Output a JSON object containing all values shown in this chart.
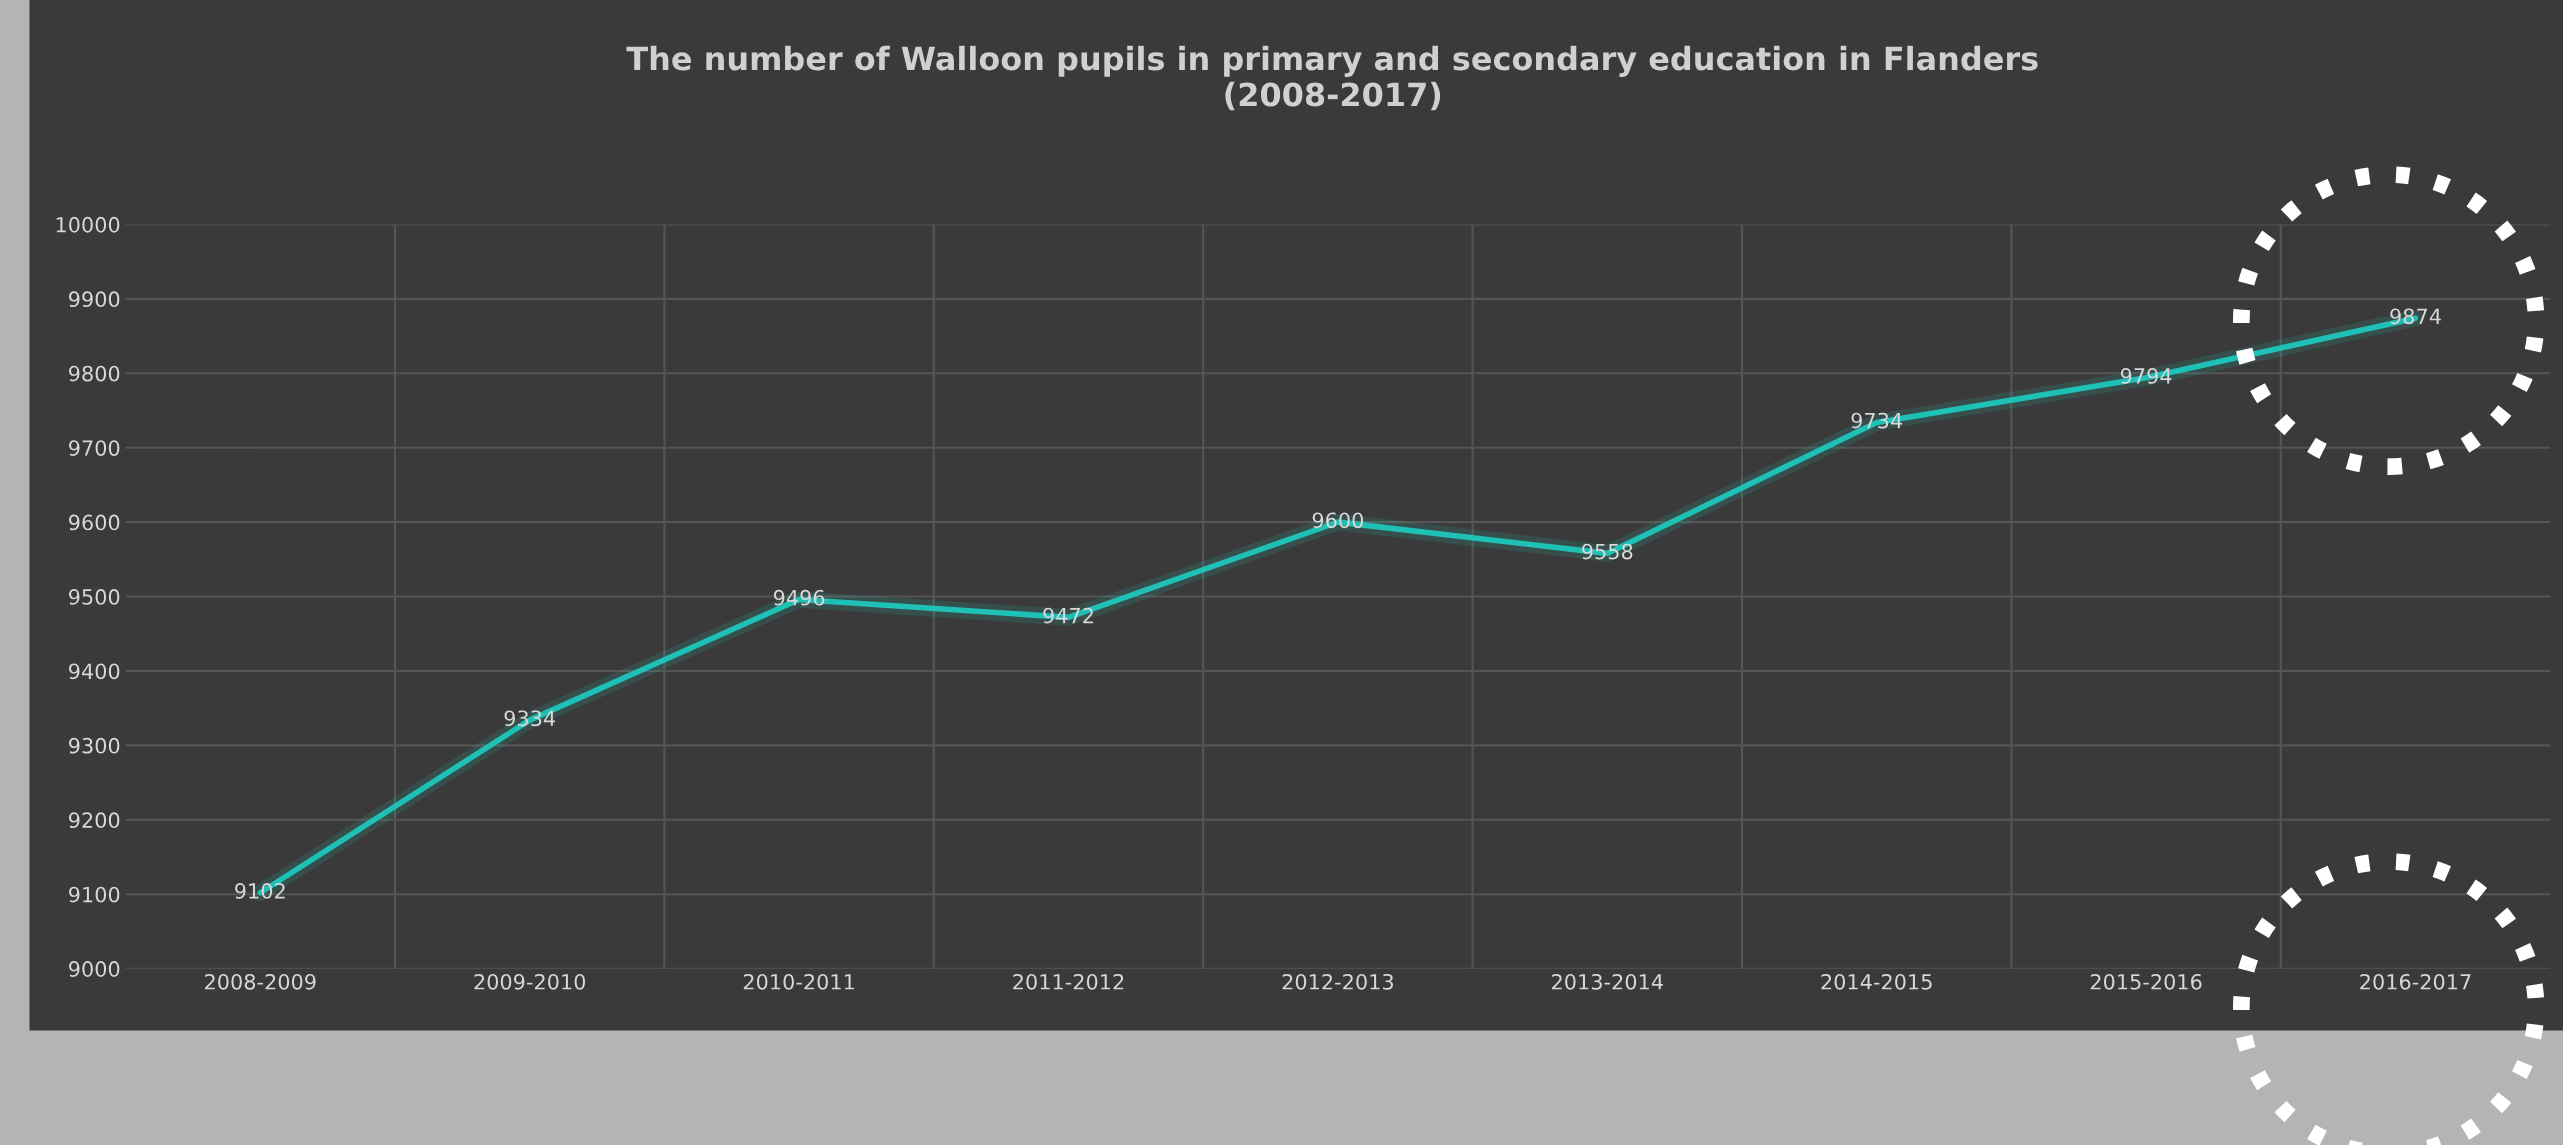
{
  "chart_data": {
    "type": "line",
    "title": "The number of Walloon pupils in primary and secondary education in Flanders\n(2008-2017)",
    "categories": [
      "2008-2009",
      "2009-2010",
      "2010-2011",
      "2011-2012",
      "2012-2013",
      "2013-2014",
      "2014-2015",
      "2015-2016",
      "2016-2017"
    ],
    "values": [
      9102,
      9334,
      9496,
      9472,
      9600,
      9558,
      9734,
      9794,
      9874
    ],
    "color": "#1fc0b5",
    "ylim": [
      9000,
      10000
    ],
    "yticks": [
      9000,
      9100,
      9200,
      9300,
      9400,
      9500,
      9600,
      9700,
      9800,
      9900,
      10000
    ],
    "grid": true,
    "data_labels": true,
    "marker": "none",
    "line_style": "solid"
  }
}
